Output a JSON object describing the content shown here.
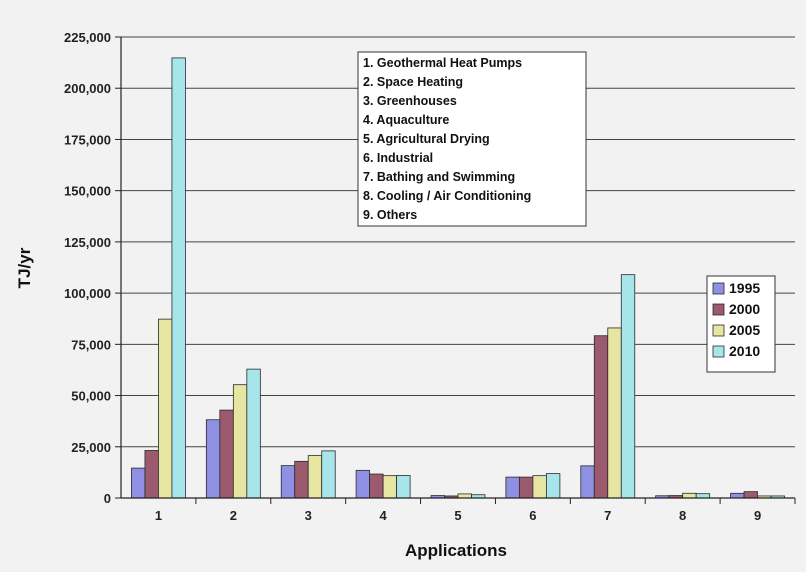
{
  "chart_data": {
    "type": "bar",
    "xlabel": "Applications",
    "ylabel": "TJ/yr",
    "ylim": [
      0,
      225000
    ],
    "yticks": [
      0,
      25000,
      50000,
      75000,
      100000,
      125000,
      150000,
      175000,
      200000,
      225000
    ],
    "ytick_labels": [
      "0",
      "25,000",
      "50,000",
      "75,000",
      "100,000",
      "125,000",
      "150,000",
      "175,000",
      "200,000",
      "225,000"
    ],
    "categories": [
      "1",
      "2",
      "3",
      "4",
      "5",
      "6",
      "7",
      "8",
      "9"
    ],
    "grid": "horizontal",
    "legend_position": "right",
    "series": [
      {
        "name": "1995",
        "color": "#8f8fe3",
        "values": [
          14600,
          38200,
          15800,
          13500,
          1200,
          10200,
          15700,
          1100,
          2300
        ]
      },
      {
        "name": "2000",
        "color": "#9c5a6f",
        "values": [
          23200,
          42900,
          17900,
          11700,
          1000,
          10200,
          79200,
          1200,
          3100
        ]
      },
      {
        "name": "2005",
        "color": "#e6e6a2",
        "values": [
          87300,
          55300,
          20700,
          10900,
          2000,
          10900,
          83000,
          2300,
          1000
        ]
      },
      {
        "name": "2010",
        "color": "#a6e6ea",
        "values": [
          214800,
          62900,
          23000,
          11000,
          1600,
          11900,
          109000,
          2100,
          1000
        ]
      }
    ],
    "annotation_lines": [
      "1.  Geothermal Heat Pumps",
      "2.  Space Heating",
      "3.  Greenhouses",
      "4.  Aquaculture",
      "5.  Agricultural Drying",
      "6.  Industrial",
      "7.  Bathing and Swimming",
      "8.  Cooling / Air Conditioning",
      "9.  Others"
    ]
  }
}
